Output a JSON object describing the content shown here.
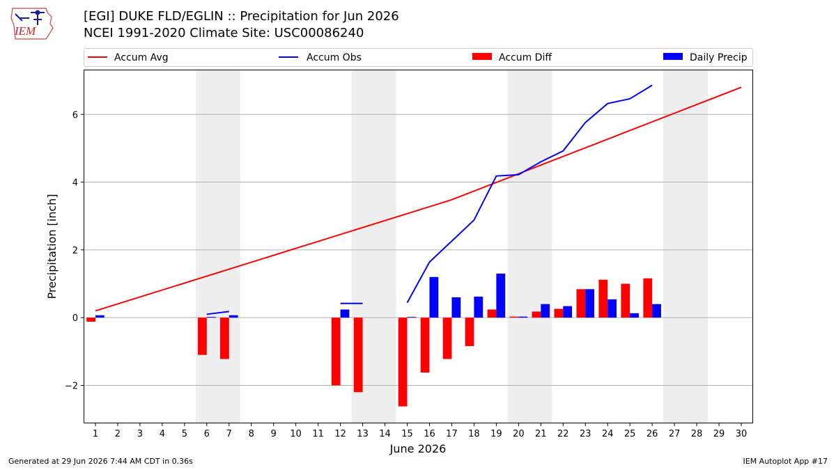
{
  "header": {
    "title_line1": "[EGI] DUKE FLD/EGLIN :: Precipitation for Jun 2026",
    "title_line2": "NCEI 1991-2020 Climate Site: USC00086240",
    "logo_text": "IEM"
  },
  "footer": {
    "left": "Generated at 29 Jun 2026 7:44 AM CDT in 0.36s",
    "right": "IEM Autoplot App #17"
  },
  "colors": {
    "accum_avg": "#ff0000",
    "accum_obs": "#0000ff",
    "accum_diff": "#ff0000",
    "daily_precip": "#0000ff",
    "weekend_shade": "#eeeeee",
    "grid": "#b0b0b0"
  },
  "chart_data": {
    "type": "bar",
    "xlabel": "June 2026",
    "ylabel": "Precipitation [inch]",
    "xlim": [
      0.5,
      30.5
    ],
    "ylim": [
      -3.1,
      7.3
    ],
    "yticks": [
      -2,
      0,
      2,
      4,
      6
    ],
    "ytick_labels": [
      "−2",
      "0",
      "2",
      "4",
      "6"
    ],
    "xticks": [
      1,
      2,
      3,
      4,
      5,
      6,
      7,
      8,
      9,
      10,
      11,
      12,
      13,
      14,
      15,
      16,
      17,
      18,
      19,
      20,
      21,
      22,
      23,
      24,
      25,
      26,
      27,
      28,
      29,
      30
    ],
    "grid": "horizontal",
    "legend_placement": "top",
    "weekend_bands": [
      [
        5.5,
        7.5
      ],
      [
        12.5,
        14.5
      ],
      [
        19.5,
        21.5
      ],
      [
        26.5,
        28.5
      ]
    ],
    "legend": [
      "Accum Avg",
      "Accum Obs",
      "Accum Diff",
      "Daily Precip"
    ],
    "accum_avg": {
      "name": "Accum Avg",
      "x": [
        1,
        17,
        30
      ],
      "values": [
        0.2,
        3.48,
        6.8
      ]
    },
    "accum_obs": {
      "name": "Accum Obs",
      "segments": [
        {
          "x": [
            6,
            7
          ],
          "values": [
            0.1,
            0.18
          ]
        },
        {
          "x": [
            12,
            13
          ],
          "values": [
            0.42,
            0.42
          ]
        },
        {
          "x": [
            15,
            16,
            17,
            18,
            19,
            20,
            21,
            22,
            23,
            24,
            25,
            26
          ],
          "values": [
            0.44,
            1.64,
            2.26,
            2.88,
            4.18,
            4.22,
            4.6,
            4.92,
            5.76,
            6.32,
            6.46,
            6.86
          ]
        }
      ]
    },
    "accum_diff": {
      "name": "Accum Diff",
      "x": [
        1,
        6,
        7,
        12,
        13,
        15,
        16,
        17,
        18,
        19,
        20,
        21,
        22,
        23,
        24,
        25,
        26
      ],
      "values": [
        -0.12,
        -1.1,
        -1.22,
        -2.0,
        -2.2,
        -2.62,
        -1.62,
        -1.22,
        -0.84,
        0.24,
        0.03,
        0.18,
        0.26,
        0.84,
        1.12,
        1.0,
        1.16
      ]
    },
    "daily_precip": {
      "name": "Daily Precip",
      "x": [
        1,
        6,
        7,
        12,
        15,
        16,
        17,
        18,
        19,
        20,
        21,
        22,
        23,
        24,
        25,
        26
      ],
      "values": [
        0.07,
        0.02,
        0.07,
        0.24,
        0.02,
        1.2,
        0.6,
        0.62,
        1.3,
        0.03,
        0.4,
        0.34,
        0.84,
        0.54,
        0.13,
        0.4
      ]
    }
  }
}
